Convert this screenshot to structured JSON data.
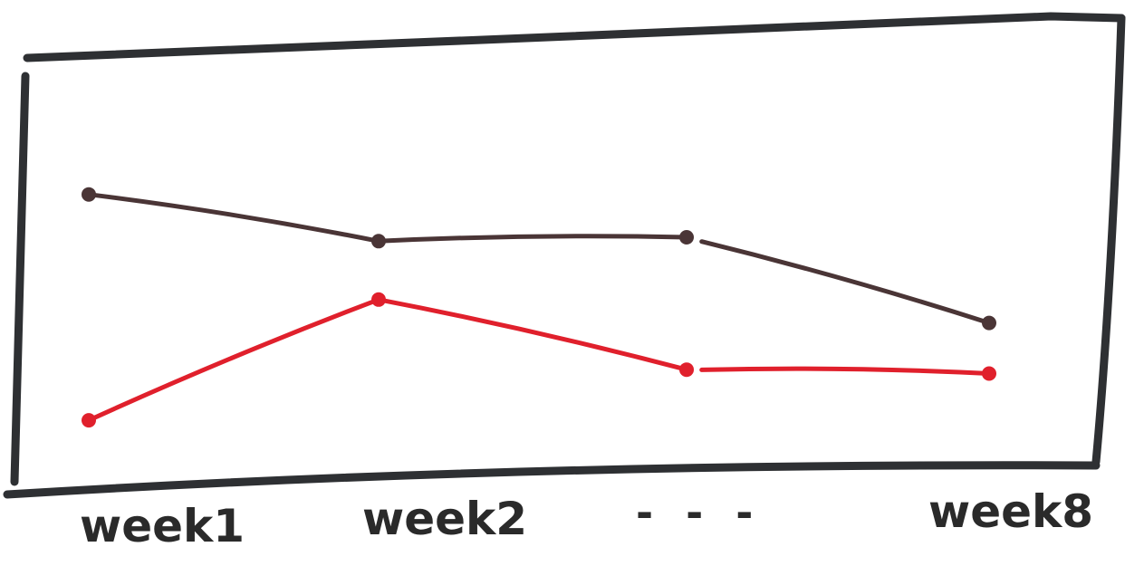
{
  "chart_data": {
    "type": "line",
    "title": "",
    "xlabel": "",
    "ylabel": "",
    "categories": [
      "week1",
      "week2",
      "...",
      "week8"
    ],
    "x_tick_labels": [
      "week1",
      "week2",
      "- - -",
      "week8"
    ],
    "ylim": [
      0,
      10
    ],
    "grid": false,
    "legend": "none",
    "series": [
      {
        "color": "#4a3536",
        "values": [
          7.1,
          5.9,
          6.0,
          3.8
        ],
        "gap_before_last_segment": true
      },
      {
        "color": "#e0202c",
        "values": [
          1.3,
          4.4,
          2.6,
          2.5
        ],
        "gap_before_last_segment": true
      }
    ]
  }
}
